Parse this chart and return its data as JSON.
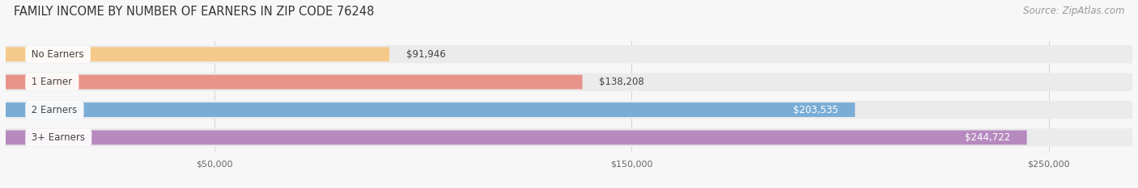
{
  "title": "FAMILY INCOME BY NUMBER OF EARNERS IN ZIP CODE 76248",
  "source": "Source: ZipAtlas.com",
  "categories": [
    "No Earners",
    "1 Earner",
    "2 Earners",
    "3+ Earners"
  ],
  "values": [
    91946,
    138208,
    203535,
    244722
  ],
  "bar_colors": [
    "#f5c98a",
    "#e8938a",
    "#7aadd6",
    "#b68abf"
  ],
  "track_color": "#ebebeb",
  "x_min": 0,
  "x_max": 270000,
  "x_ticks": [
    50000,
    150000,
    250000
  ],
  "x_tick_labels": [
    "$50,000",
    "$150,000",
    "$250,000"
  ],
  "label_colors_dark": [
    "#333333",
    "#333333"
  ],
  "label_colors_light": [
    "#ffffff",
    "#ffffff"
  ],
  "value_fontsize": 8.5,
  "label_fontsize": 8.5,
  "title_fontsize": 10.5,
  "source_fontsize": 8.5,
  "background_color": "#f7f7f7"
}
